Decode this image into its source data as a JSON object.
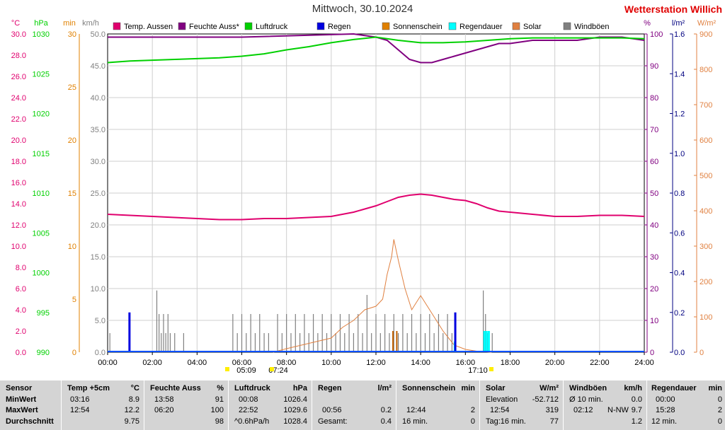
{
  "header": {
    "title": "Mittwoch, 30.10.2024",
    "station": "Wetterstation Willich"
  },
  "chart_data": {
    "type": "line",
    "x_ticks": [
      "00:00",
      "02:00",
      "04:00",
      "06:00",
      "08:00",
      "10:00",
      "12:00",
      "14:00",
      "16:00",
      "18:00",
      "20:00",
      "22:00",
      "24:00"
    ],
    "legend": [
      {
        "name": "Temp. Aussen",
        "color": "#e0006e"
      },
      {
        "name": "Feuchte Auss*",
        "color": "#800080"
      },
      {
        "name": "Luftdruck",
        "color": "#00d000"
      },
      {
        "name": "Regen",
        "color": "#0000e0"
      },
      {
        "name": "Sonnenschein",
        "color": "#e08000"
      },
      {
        "name": "Regendauer",
        "color": "#00ffff"
      },
      {
        "name": "Solar",
        "color": "#e08040"
      },
      {
        "name": "Windböen",
        "color": "#808080"
      }
    ],
    "axes": {
      "temp": {
        "unit": "°C",
        "color": "#e0006e",
        "ticks": [
          "0.0",
          "2.0",
          "4.0",
          "6.0",
          "8.0",
          "10.0",
          "12.0",
          "14.0",
          "16.0",
          "18.0",
          "20.0",
          "22.0",
          "24.0",
          "26.0",
          "28.0",
          "30.0"
        ]
      },
      "pressure": {
        "unit": "hPa",
        "color": "#00d000",
        "ticks": [
          "990",
          "995",
          "1000",
          "1005",
          "1010",
          "1015",
          "1020",
          "1025",
          "1030"
        ]
      },
      "minutes": {
        "unit": "min",
        "color": "#e08000",
        "ticks": [
          "0",
          "5",
          "10",
          "15",
          "20",
          "25",
          "30"
        ]
      },
      "wind": {
        "unit": "km/h",
        "color": "#808080",
        "ticks": [
          "0.0",
          "5.0",
          "10.0",
          "15.0",
          "20.0",
          "25.0",
          "30.0",
          "35.0",
          "40.0",
          "45.0",
          "50.0"
        ]
      },
      "humidity": {
        "unit": "%",
        "color": "#800080",
        "ticks": [
          "0",
          "10",
          "20",
          "30",
          "40",
          "50",
          "60",
          "70",
          "80",
          "90",
          "100"
        ]
      },
      "rain": {
        "unit": "l/m²",
        "color": "#000080",
        "ticks": [
          "0.0",
          "0.2",
          "0.4",
          "0.6",
          "0.8",
          "1.0",
          "1.2",
          "1.4",
          "1.6"
        ]
      },
      "solar": {
        "unit": "W/m²",
        "color": "#e08040",
        "ticks": [
          "0",
          "100",
          "200",
          "300",
          "400",
          "500",
          "600",
          "700",
          "800",
          "900"
        ]
      }
    },
    "sun_markers": [
      "05:09",
      "07:24",
      "17:10"
    ],
    "series": [
      {
        "name": "Temp. Aussen",
        "unit": "°C",
        "x": [
          0,
          1,
          2,
          3,
          4,
          5,
          6,
          7,
          8,
          9,
          10,
          10.5,
          11,
          11.5,
          12,
          12.5,
          13,
          13.5,
          14,
          14.5,
          15,
          15.5,
          16,
          16.5,
          17,
          17.5,
          18,
          19,
          20,
          21,
          22,
          23,
          24
        ],
        "values": [
          13.0,
          12.9,
          12.8,
          12.7,
          12.6,
          12.5,
          12.5,
          12.6,
          12.6,
          12.7,
          12.8,
          13.0,
          13.2,
          13.5,
          13.8,
          14.2,
          14.6,
          14.8,
          14.9,
          14.8,
          14.6,
          14.4,
          14.3,
          14.0,
          13.6,
          13.3,
          13.2,
          13.0,
          12.8,
          12.8,
          12.9,
          12.9,
          12.8
        ]
      },
      {
        "name": "Feuchte Auss*",
        "unit": "%",
        "x": [
          0,
          6,
          11,
          12,
          12.5,
          13,
          13.5,
          14,
          14.5,
          15,
          15.5,
          16,
          16.5,
          17,
          17.5,
          18,
          19,
          20,
          21,
          22,
          23,
          24
        ],
        "values": [
          99,
          99,
          100,
          99,
          98,
          95,
          92,
          91,
          91,
          92,
          93,
          94,
          95,
          96,
          97,
          97,
          98,
          98,
          98,
          99,
          99,
          98
        ]
      },
      {
        "name": "Luftdruck",
        "unit": "hPa",
        "x": [
          0,
          1,
          2,
          3,
          4,
          5,
          6,
          7,
          8,
          9,
          10,
          11,
          12,
          13,
          14,
          15,
          16,
          17,
          18,
          19,
          20,
          21,
          22,
          23,
          24
        ],
        "values": [
          1026.4,
          1026.6,
          1026.7,
          1026.8,
          1026.9,
          1027.0,
          1027.2,
          1027.5,
          1028.0,
          1028.4,
          1028.9,
          1029.3,
          1029.6,
          1029.2,
          1028.9,
          1028.9,
          1029.0,
          1029.2,
          1029.4,
          1029.5,
          1029.5,
          1029.5,
          1029.5,
          1029.5,
          1029.4
        ]
      },
      {
        "name": "Solar",
        "unit": "W/m²",
        "x": [
          7.4,
          8,
          9,
          10,
          10.5,
          11,
          11.5,
          12,
          12.3,
          12.5,
          12.7,
          12.8,
          13,
          13.3,
          13.6,
          14,
          14.5,
          15,
          15.5,
          16,
          16.5,
          17.17
        ],
        "values": [
          0,
          10,
          25,
          40,
          70,
          90,
          120,
          130,
          150,
          220,
          270,
          319,
          260,
          180,
          120,
          160,
          110,
          60,
          20,
          8,
          3,
          0
        ]
      },
      {
        "name": "Regen",
        "unit": "l/m²",
        "x": [
          0.93,
          15.5
        ],
        "values": [
          0.2,
          0.2
        ]
      },
      {
        "name": "Sonnenschein",
        "unit": "min",
        "x": [
          12.73,
          12.9
        ],
        "values": [
          2,
          2
        ]
      },
      {
        "name": "Regendauer",
        "unit": "min",
        "x": [
          15.48,
          16.8,
          16.9,
          17.0
        ],
        "values": [
          1,
          2,
          2,
          2
        ]
      },
      {
        "name": "Windböen",
        "unit": "km/h",
        "x": [
          0.1,
          0.2,
          2.2,
          2.3,
          2.4,
          2.5,
          2.6,
          2.7,
          2.8,
          3.0,
          3.4,
          3.5,
          5.6,
          5.8,
          6.0,
          6.2,
          6.4,
          6.6,
          6.8,
          7.0,
          7.2,
          7.6,
          7.8,
          8.0,
          8.2,
          8.4,
          8.6,
          8.8,
          9.0,
          9.2,
          9.4,
          9.6,
          9.8,
          10.0,
          10.2,
          10.4,
          10.6,
          10.8,
          11.0,
          11.2,
          11.4,
          11.6,
          11.8,
          12.0,
          12.2,
          12.4,
          12.6,
          12.8,
          13.0,
          13.2,
          13.4,
          13.6,
          13.8,
          14.0,
          14.2,
          14.4,
          14.6,
          14.8,
          15.0,
          15.2,
          15.4,
          16.8,
          16.9,
          17.0,
          17.2,
          17.4
        ],
        "values": [
          3.0,
          0,
          9.7,
          6.0,
          3.0,
          6.0,
          3.0,
          6.0,
          3.0,
          3.0,
          3.0,
          0,
          6.0,
          3.0,
          6.0,
          3.0,
          6.0,
          3.0,
          6.0,
          3.0,
          3.0,
          6.0,
          3.0,
          6.0,
          3.0,
          6.0,
          3.0,
          6.0,
          3.0,
          6.0,
          3.0,
          6.0,
          3.0,
          6.0,
          3.0,
          6.0,
          3.0,
          6.0,
          3.0,
          6.0,
          3.0,
          9.0,
          3.0,
          6.0,
          3.0,
          6.0,
          3.0,
          6.0,
          3.0,
          6.0,
          3.0,
          6.0,
          3.0,
          6.0,
          3.0,
          6.0,
          3.0,
          6.0,
          3.0,
          6.0,
          3.0,
          9.7,
          6.0,
          3.0,
          3.0,
          0
        ]
      }
    ]
  },
  "stats": {
    "row_labels": {
      "sensor": "Sensor",
      "min": "MinWert",
      "max": "MaxWert",
      "avg": "Durchschnitt"
    },
    "temp": {
      "title": "Temp +5cm",
      "unit": "°C",
      "min_time": "03:16",
      "min_val": "8.9",
      "max_time": "12:54",
      "max_val": "12.2",
      "avg": "9.75"
    },
    "humidity": {
      "title": "Feuchte Auss",
      "unit": "%",
      "min_time": "13:58",
      "min_val": "91",
      "max_time": "06:20",
      "max_val": "100",
      "avg": "98"
    },
    "pressure": {
      "title": "Luftdruck",
      "unit": "hPa",
      "min_time": "00:08",
      "min_val": "1026.4",
      "max_time": "22:52",
      "max_val": "1029.6",
      "avg_label": "^0.6hPa/h",
      "avg": "1028.4"
    },
    "rain": {
      "title": "Regen",
      "unit": "l/m²",
      "max_time": "00:56",
      "max_val": "0.2",
      "total_label": "Gesamt:",
      "total": "0.4"
    },
    "sunshine": {
      "title": "Sonnenschein",
      "unit": "min",
      "max_time": "12:44",
      "max_val": "2",
      "total": "16 min.",
      "total_val": "0"
    },
    "solar": {
      "title": "Solar",
      "unit": "W/m²",
      "elev_label": "Elevation",
      "elev": "-52.712",
      "max_time": "12:54",
      "max_val": "319",
      "day_label": "Tag:16 min.",
      "day_val": "77"
    },
    "wind": {
      "title": "Windböen",
      "unit": "km/h",
      "avg10_label": "Ø 10 min.",
      "avg10": "0.0",
      "max_time": "02:12",
      "max_dir": "N-NW",
      "max_val": "9.7",
      "avg": "1.2"
    },
    "raindur": {
      "title": "Regendauer",
      "unit": "min",
      "min_time": "00:00",
      "min_val": "0",
      "max_time": "15:28",
      "max_val": "2",
      "total": "12 min.",
      "total_val": "0"
    }
  }
}
